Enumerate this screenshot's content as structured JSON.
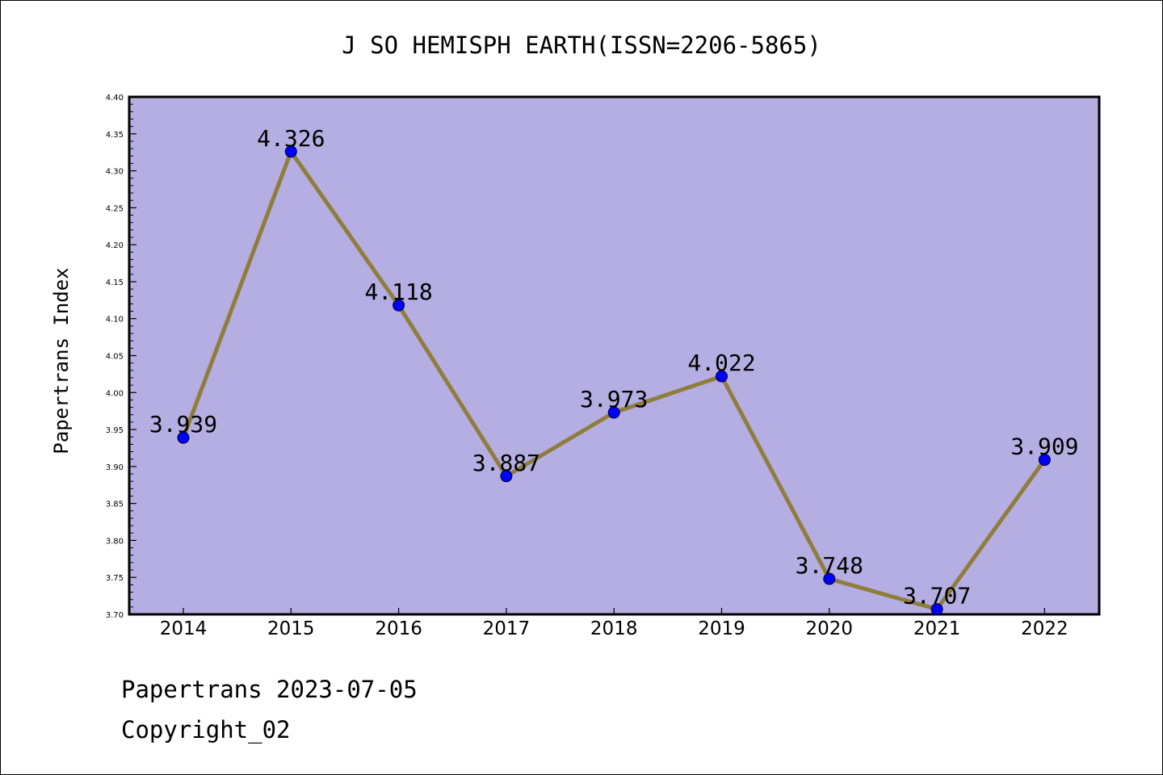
{
  "chart_data": {
    "type": "line",
    "title": "J SO HEMISPH EARTH(ISSN=2206-5865)",
    "ylabel": "Papertrans Index",
    "xlabel": "",
    "categories": [
      "2014",
      "2015",
      "2016",
      "2017",
      "2018",
      "2019",
      "2020",
      "2021",
      "2022"
    ],
    "values": [
      3.939,
      4.326,
      4.118,
      3.887,
      3.973,
      4.022,
      3.748,
      3.707,
      3.909
    ],
    "value_labels": [
      "3.939",
      "4.326",
      "4.118",
      "3.887",
      "3.973",
      "4.022",
      "3.748",
      "3.707",
      "3.909"
    ],
    "ylim": [
      3.7,
      4.4
    ],
    "yticks": [
      "3.70",
      "3.75",
      "3.80",
      "3.85",
      "3.90",
      "3.95",
      "4.00",
      "4.05",
      "4.10",
      "4.15",
      "4.20",
      "4.25",
      "4.30",
      "4.35",
      "4.40"
    ],
    "grid": false,
    "colors": {
      "plot_background": "#b4aee2",
      "line": "#8f7d3c",
      "marker": "#0000ff"
    }
  },
  "footer": {
    "source": "Papertrans 2023-07-05",
    "copyright": "Copyright_02"
  }
}
